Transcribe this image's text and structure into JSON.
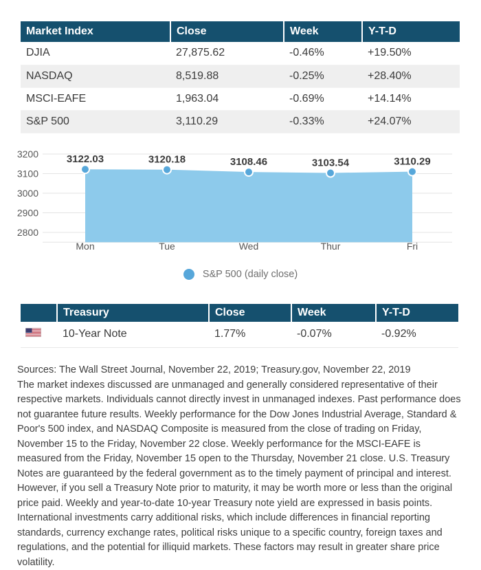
{
  "colors": {
    "header_bg": "#15506E",
    "row_alt_bg": "#EFEFEF",
    "area_fill": "#8DCAEB",
    "point_fill": "#57A7DA",
    "grid_line": "#E3E3E3",
    "text_dark": "#3A3A3A",
    "axis_text": "#555555",
    "legend_text": "#6E6E6E",
    "flag_red": "#B22234",
    "flag_blue": "#3C3B6E"
  },
  "market_table": {
    "headers": [
      "Market Index",
      "Close",
      "Week",
      "Y-T-D"
    ],
    "rows": [
      [
        "DJIA",
        "27,875.62",
        "-0.46%",
        "+19.50%"
      ],
      [
        "NASDAQ",
        "8,519.88",
        "-0.25%",
        "+28.40%"
      ],
      [
        "MSCI-EAFE",
        "1,963.04",
        "-0.69%",
        "+14.14%"
      ],
      [
        "S&P 500",
        "3,110.29",
        "-0.33%",
        "+24.07%"
      ]
    ]
  },
  "chart_data": {
    "type": "area",
    "title": "",
    "categories": [
      "Mon",
      "Tue",
      "Wed",
      "Thur",
      "Fri"
    ],
    "values": [
      3122.03,
      3120.18,
      3108.46,
      3103.54,
      3110.29
    ],
    "point_labels": [
      "3122.03",
      "3120.18",
      "3108.46",
      "3103.54",
      "3110.29"
    ],
    "y_ticks": [
      3200,
      3100,
      3000,
      2900,
      2800
    ],
    "ylim": [
      2750,
      3216
    ],
    "xlabel": "",
    "ylabel": "",
    "grid": true,
    "legend": "S&P 500 (daily close)",
    "legend_position": "bottom"
  },
  "treasury_table": {
    "headers": [
      "",
      "Treasury",
      "Close",
      "Week",
      "Y-T-D"
    ],
    "rows": [
      {
        "flag_icon": "us-flag-icon",
        "cells": [
          "10-Year Note",
          "1.77%",
          "-0.07%",
          "-0.92%"
        ]
      }
    ]
  },
  "footer": {
    "sources": "Sources: The Wall Street Journal, November 22, 2019; Treasury.gov, November 22, 2019",
    "disclaimer": "The market indexes discussed are unmanaged and generally considered representative of their respective markets. Individuals cannot directly invest in unmanaged indexes. Past performance does not guarantee future results. Weekly performance for the Dow Jones Industrial Average, Standard & Poor's 500 index, and NASDAQ Composite is measured from the close of trading on Friday, November 15 to the Friday, November 22 close. Weekly performance for the MSCI-EAFE is measured from the Friday, November 15 open to the Thursday, November 21 close. U.S. Treasury Notes are guaranteed by the federal government as to the timely payment of principal and interest. However, if you sell a Treasury Note prior to maturity, it may be worth more or less than the original price paid. Weekly and year-to-date 10-year Treasury note yield are expressed in basis points. International investments carry additional risks, which include differences in financial reporting standards, currency exchange rates, political risks unique to a specific country, foreign taxes and regulations, and the potential for illiquid markets. These factors may result in greater share price volatility."
  }
}
